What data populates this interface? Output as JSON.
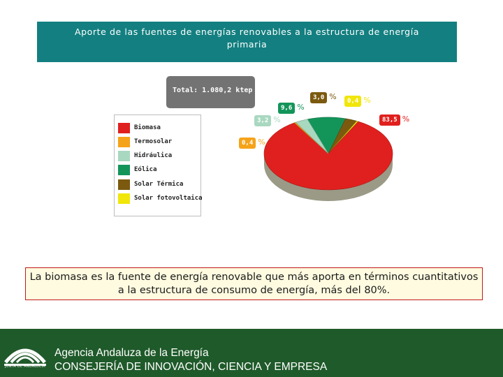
{
  "header": {
    "title": "Aporte de las fuentes de energías renovables a la estructura de energía primaria"
  },
  "chart_data": {
    "type": "pie",
    "total_label": "Total: 1.080,2 ktep",
    "slices": [
      {
        "name": "Biomasa",
        "value": 83.5,
        "label": "83,5",
        "color": "#e0201e"
      },
      {
        "name": "Termosolar",
        "value": 0.4,
        "label": "0,4",
        "color": "#f5a31a"
      },
      {
        "name": "Hidráulica",
        "value": 3.2,
        "label": "3,2",
        "color": "#a9d8c0"
      },
      {
        "name": "Eólica",
        "value": 9.6,
        "label": "9,6",
        "color": "#13955a"
      },
      {
        "name": "Solar Térmica",
        "value": 3.0,
        "label": "3,0",
        "color": "#7b5a0f"
      },
      {
        "name": "Solar fotovoltaica",
        "value": 0.4,
        "label": "0,4",
        "color": "#f1e60a"
      }
    ],
    "legend": [
      {
        "label": "Biomasa",
        "color": "#e0201e"
      },
      {
        "label": "Termosolar",
        "color": "#f5a31a"
      },
      {
        "label": "Hidráulica",
        "color": "#a9d8c0"
      },
      {
        "label": "Eólica",
        "color": "#13955a"
      },
      {
        "label": "Solar Térmica",
        "color": "#7b5a0f"
      },
      {
        "label": "Solar fotovoltaica",
        "color": "#f1e60a"
      }
    ],
    "percent_sign": "%",
    "legend_placement": "left"
  },
  "summary": {
    "text": "La biomasa es la fuente de energía renovable que más aporta en  términos cuantitativos a la estructura de consumo de energía, más del 80%."
  },
  "footer": {
    "logo_caption": "JUNTA DE ANDALUCIA",
    "agency": "Agencia Andaluza de la Energía",
    "ministry": "CONSEJERÍA DE INNOVACIÓN, CIENCIA Y EMPRESA"
  },
  "colors": {
    "title_bg": "#137f80",
    "footer_bg": "#1f5a2a"
  }
}
